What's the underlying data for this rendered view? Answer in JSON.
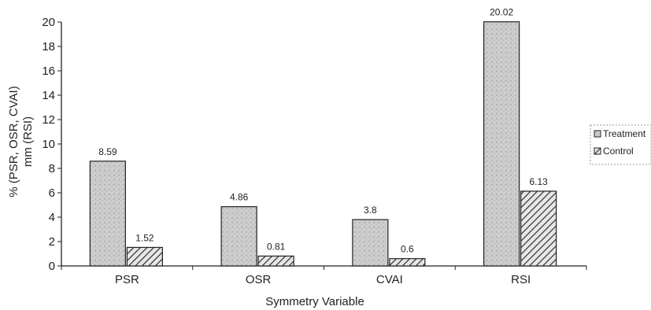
{
  "chart_data": {
    "type": "bar",
    "title": "",
    "xlabel": "Symmetry Variable",
    "ylabel_lines": [
      "% (PSR, OSR, CVAI)",
      "mm (RSI)"
    ],
    "categories": [
      "PSR",
      "OSR",
      "CVAI",
      "RSI"
    ],
    "series": [
      {
        "name": "Treatment",
        "values": [
          8.59,
          4.86,
          3.8,
          20.02
        ],
        "labels": [
          "8.59",
          "4.86",
          "3.8",
          "20.02"
        ],
        "fill": "stipple-gray"
      },
      {
        "name": "Control",
        "values": [
          1.52,
          0.81,
          0.6,
          6.13
        ],
        "labels": [
          "1.52",
          "0.81",
          "0.6",
          "6.13"
        ],
        "fill": "diagonal-hatch"
      }
    ],
    "ylim": [
      0,
      20
    ],
    "yticks": [
      0,
      2,
      4,
      6,
      8,
      10,
      12,
      14,
      16,
      18,
      20
    ],
    "grid": false,
    "legend_position": "right"
  }
}
